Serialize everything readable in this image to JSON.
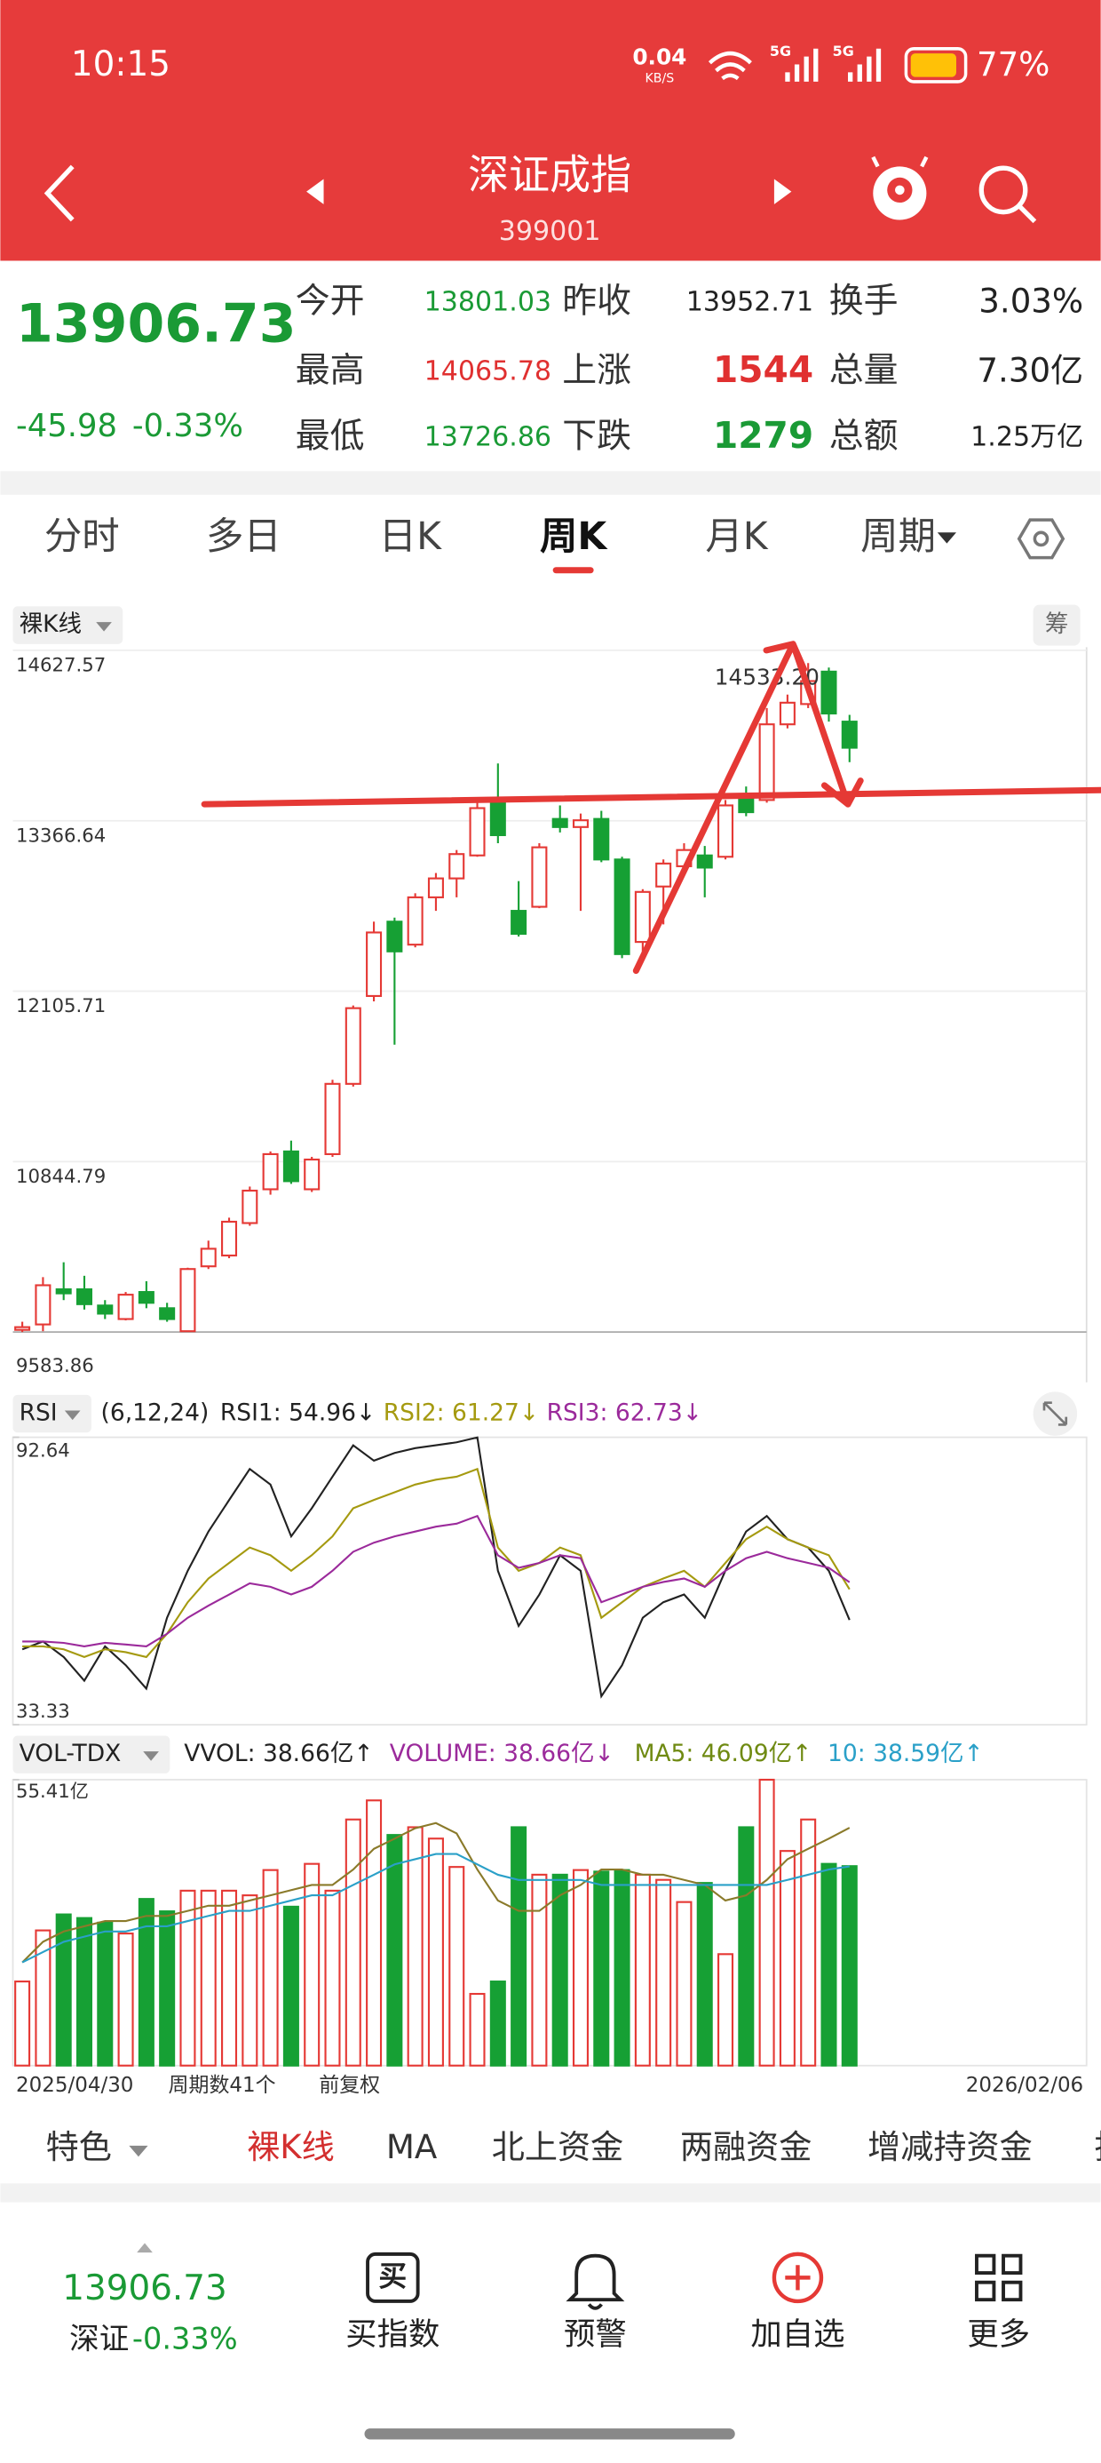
{
  "status": {
    "time": "10:15",
    "net_speed": "0.04",
    "net_unit": "KB/S",
    "network": [
      "5G",
      "5G"
    ],
    "battery": "77%"
  },
  "header": {
    "title": "深证成指",
    "code": "399001"
  },
  "quote": {
    "price": "13906.73",
    "change": "-45.98",
    "change_pct": "-0.33%",
    "rows": [
      [
        {
          "label": "今开",
          "value": "13801.03",
          "color": "#1a9a35"
        },
        {
          "label": "昨收",
          "value": "13952.71",
          "color": "#222222"
        },
        {
          "label": "换手",
          "value": "3.03%",
          "color": "#222222"
        }
      ],
      [
        {
          "label": "最高",
          "value": "14065.78",
          "color": "#e03030"
        },
        {
          "label": "上涨",
          "value": "1544",
          "color": "#e03030"
        },
        {
          "label": "总量",
          "value": "7.30亿",
          "color": "#222222"
        }
      ],
      [
        {
          "label": "最低",
          "value": "13726.86",
          "color": "#1a9a35"
        },
        {
          "label": "下跌",
          "value": "1279",
          "color": "#1a9a35"
        },
        {
          "label": "总额",
          "value": "1.25万亿",
          "color": "#222222"
        }
      ]
    ]
  },
  "tabs": {
    "items": [
      "分时",
      "多日",
      "日K",
      "周K",
      "月K",
      "周期"
    ],
    "active": 3
  },
  "chart_data": [
    {
      "type": "candlestick",
      "label": "裸K线",
      "side_label": "筹",
      "max_label": "14533.20",
      "up_color": "#e53935",
      "down_color": "#16a034",
      "ylim": [
        9583.86,
        14627.57
      ],
      "yticks": [
        9583.86,
        10844.79,
        12105.71,
        13366.64,
        14627.57
      ],
      "start_date": "2025/04/30",
      "end_date": "2026/02/06",
      "count_label": "周期数41个",
      "adjust_label": "前复权",
      "candles": {
        "open": [
          9600,
          9640,
          9900,
          9900,
          9780,
          9680,
          9880,
          9760,
          9590,
          10070,
          10150,
          10390,
          10640,
          10920,
          10640,
          10900,
          11420,
          12070,
          12620,
          12450,
          12800,
          12940,
          13110,
          13520,
          12700,
          12730,
          13380,
          13320,
          13380,
          13080,
          12470,
          12880,
          13030,
          13110,
          13100,
          13550,
          13520,
          14080,
          14230,
          14470,
          14100
        ],
        "close": [
          9620,
          9930,
          9870,
          9790,
          9720,
          9860,
          9800,
          9680,
          10050,
          10200,
          10400,
          10630,
          10900,
          10700,
          10860,
          11420,
          11980,
          12540,
          12400,
          12800,
          12940,
          13120,
          13460,
          13260,
          12530,
          13170,
          13320,
          13370,
          13080,
          12380,
          12840,
          13050,
          13150,
          13020,
          13480,
          13430,
          14080,
          14240,
          14400,
          14160,
          13906.73
        ],
        "high": [
          9660,
          9990,
          10100,
          10000,
          9820,
          9880,
          9960,
          9800,
          10060,
          10260,
          10430,
          10660,
          10920,
          11000,
          10880,
          11450,
          12000,
          12620,
          12650,
          12830,
          12980,
          13150,
          13500,
          13790,
          12920,
          13200,
          13480,
          13420,
          13440,
          13100,
          12860,
          13080,
          13200,
          13180,
          13520,
          13620,
          14200,
          14300,
          14533.2,
          14500,
          14150
        ],
        "low": [
          9584,
          9590,
          9820,
          9750,
          9680,
          9670,
          9760,
          9660,
          9585,
          10050,
          10130,
          10370,
          10600,
          10680,
          10620,
          10880,
          11400,
          12030,
          11710,
          12430,
          12700,
          12800,
          13100,
          13200,
          12510,
          12720,
          13280,
          12700,
          13060,
          12350,
          12330,
          12600,
          13000,
          12800,
          13080,
          13400,
          13500,
          14050,
          14200,
          14100,
          13800
        ]
      }
    },
    {
      "type": "line",
      "label": "RSI",
      "params": "(6,12,24)",
      "ylim": [
        33.33,
        92.64
      ],
      "yticks": [
        33.33,
        92.64
      ],
      "series": [
        {
          "name": "RSI1",
          "legend": "RSI1: 54.96↓",
          "color": "#222222",
          "values": [
            48.9,
            50.5,
            47.3,
            42.4,
            49.5,
            45.6,
            40.8,
            55.4,
            65.1,
            73.2,
            79.7,
            86.1,
            82.9,
            72.2,
            78.0,
            84.5,
            91.0,
            87.8,
            89.4,
            90.4,
            91.0,
            91.6,
            92.6,
            65.1,
            53.7,
            60.2,
            68.3,
            65.1,
            39.2,
            45.6,
            55.4,
            58.6,
            60.2,
            55.4,
            65.1,
            73.2,
            76.4,
            71.6,
            69.9,
            65.1,
            54.96
          ]
        },
        {
          "name": "RSI2",
          "legend": "RSI2: 61.27↓",
          "color": "#a59a10",
          "values": [
            49.5,
            49.5,
            48.9,
            47.3,
            48.9,
            48.3,
            47.3,
            52.1,
            58.6,
            63.5,
            66.7,
            69.9,
            68.3,
            65.1,
            68.3,
            72.2,
            78.0,
            79.7,
            81.3,
            82.9,
            83.9,
            84.5,
            86.1,
            69.9,
            65.1,
            66.7,
            69.9,
            68.3,
            55.4,
            58.6,
            61.8,
            63.5,
            65.1,
            61.8,
            66.7,
            71.6,
            74.2,
            71.6,
            69.9,
            68.3,
            61.27
          ]
        },
        {
          "name": "RSI3",
          "legend": "RSI3: 62.73↓",
          "color": "#9b2a9b",
          "values": [
            50.5,
            50.5,
            50.2,
            49.5,
            50.2,
            49.9,
            49.5,
            52.1,
            55.4,
            57.9,
            60.2,
            62.5,
            61.8,
            60.2,
            61.8,
            65.1,
            69.0,
            70.9,
            72.2,
            73.2,
            74.2,
            74.8,
            76.4,
            68.3,
            65.7,
            66.7,
            68.3,
            67.7,
            58.6,
            60.2,
            61.8,
            62.8,
            63.5,
            61.8,
            65.1,
            67.7,
            69.0,
            67.7,
            66.7,
            65.7,
            62.73
          ]
        }
      ]
    },
    {
      "type": "bar",
      "label": "VOL-TDX",
      "ylim": [
        0,
        55.41
      ],
      "yticks": [
        {
          "value": 55.41,
          "label": "55.41亿"
        }
      ],
      "legend": [
        {
          "text": "VVOL: 38.66亿↑",
          "color": "#222222"
        },
        {
          "text": "VOLUME: 38.66亿↓",
          "color": "#9b2a9b"
        },
        {
          "text": "MA5: 46.09亿↑",
          "color": "#6f8a12"
        },
        {
          "text": "10: 38.59亿↑",
          "color": "#2aa0c8"
        }
      ],
      "series": [
        {
          "name": "VOLUME",
          "values": [
            16.3,
            26.2,
            29.3,
            28.6,
            27.7,
            25.6,
            32.3,
            29.9,
            33.9,
            33.9,
            33.9,
            33.0,
            37.9,
            30.8,
            39.1,
            33.9,
            47.7,
            51.4,
            44.7,
            46.2,
            44.0,
            38.5,
            13.9,
            16.3,
            46.2,
            37.0,
            37.0,
            37.9,
            37.6,
            37.9,
            37.0,
            36.0,
            31.7,
            35.4,
            21.6,
            46.2,
            55.41,
            41.6,
            47.7,
            39.1,
            38.66
          ]
        },
        {
          "name": "MA5",
          "color": "#8a7a2a",
          "values": [
            20,
            24,
            26,
            27,
            28,
            28,
            29,
            29,
            30,
            31,
            31,
            32,
            33,
            34,
            35,
            35,
            38,
            42,
            44,
            46,
            47,
            45,
            38,
            32,
            30,
            30,
            33,
            35,
            38,
            38,
            37,
            37,
            36,
            35,
            32,
            33,
            36,
            40,
            42,
            44,
            46.09
          ]
        },
        {
          "name": "10",
          "color": "#2aa0c8",
          "values": [
            20,
            22,
            24,
            25,
            26,
            26,
            27,
            27,
            28,
            29,
            30,
            30,
            31,
            32,
            33,
            33,
            35,
            37,
            39,
            40,
            41,
            41,
            39,
            37,
            36,
            36,
            36,
            36,
            35,
            35,
            35,
            35,
            35,
            35,
            35,
            35,
            35,
            36,
            37,
            38,
            38.59
          ]
        }
      ]
    }
  ],
  "menu": {
    "items": [
      "特色",
      "裸K线",
      "MA",
      "北上资金",
      "两融资金",
      "增减持资金",
      "指"
    ],
    "active": 1
  },
  "bottom_bar": {
    "price": "13906.73",
    "name": "深证",
    "change_pct": "-0.33%",
    "buy_icon": "买",
    "actions": [
      "买指数",
      "预警",
      "加自选",
      "更多"
    ]
  }
}
